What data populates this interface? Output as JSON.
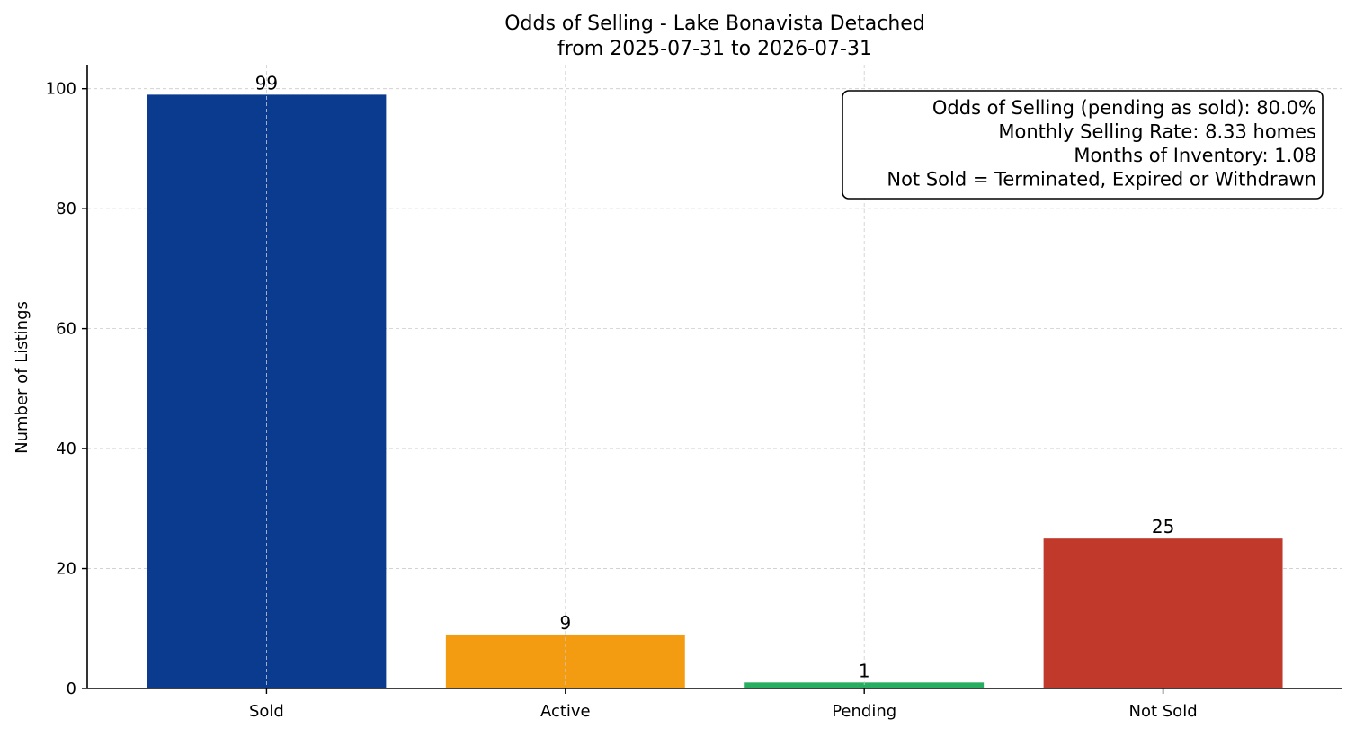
{
  "chart_data": {
    "type": "bar",
    "title": "Odds of Selling - Lake Bonavista Detached",
    "subtitle": "from 2025-07-31 to 2026-07-31",
    "xlabel": "",
    "ylabel": "Number of Listings",
    "categories": [
      "Sold",
      "Active",
      "Pending",
      "Not Sold"
    ],
    "values": [
      99,
      9,
      1,
      25
    ],
    "data_labels": [
      "99",
      "9",
      "1",
      "25"
    ],
    "colors": [
      "#0b3b8f",
      "#f39c12",
      "#27ae60",
      "#c0392b"
    ],
    "ylim": [
      0,
      104
    ],
    "yticks": [
      0,
      20,
      40,
      60,
      80,
      100
    ],
    "grid": true,
    "info_box": {
      "placement": "top-right",
      "lines": [
        "Odds of Selling (pending as sold): 80.0%",
        "Monthly Selling Rate: 8.33 homes",
        "Months of Inventory: 1.08",
        "Not Sold = Terminated, Expired or Withdrawn"
      ]
    }
  }
}
